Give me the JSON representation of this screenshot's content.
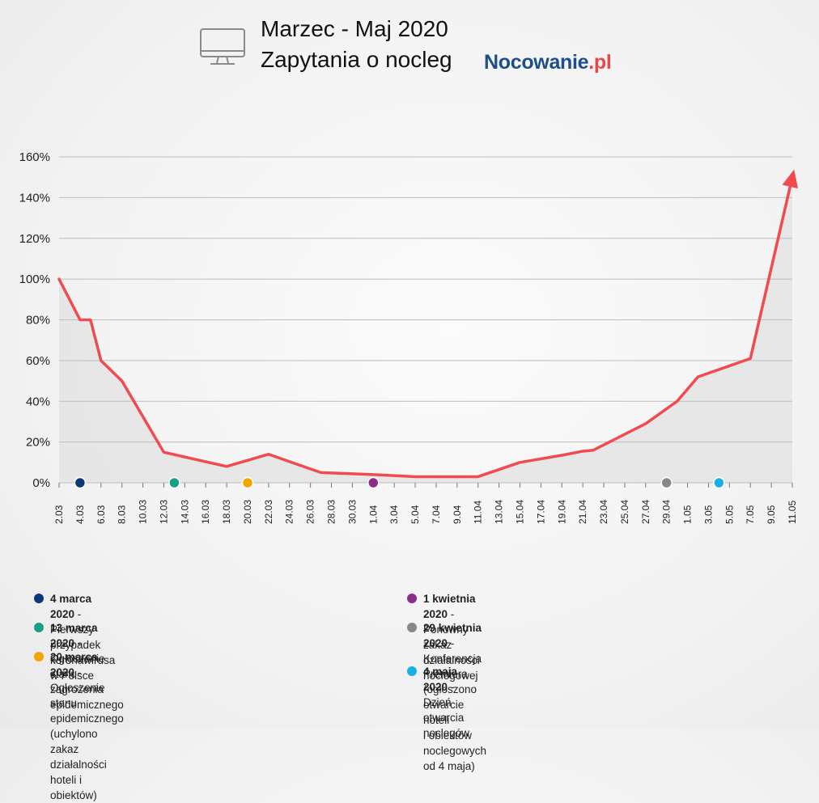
{
  "header": {
    "title_line1": "Marzec - Maj 2020",
    "title_line2": "Zapytania o nocleg",
    "brand_main": "Nocowanie",
    "brand_suffix": ".pl",
    "icon": "monitor-icon"
  },
  "colors": {
    "line": "#ef4b50",
    "area": "#e4e4e4",
    "grid": "#bdbdbd",
    "brand_blue": "#1d4e89",
    "brand_red": "#e8474d"
  },
  "chart_data": {
    "type": "area",
    "title": "Zapytania o nocleg",
    "xlabel": "",
    "ylabel": "",
    "x_ticks": [
      "2.03",
      "4.03",
      "6.03",
      "8.03",
      "10.03",
      "12.03",
      "14.03",
      "16.03",
      "18.03",
      "20.03",
      "22.03",
      "24.03",
      "26.03",
      "28.03",
      "30.03",
      "1.04",
      "3.04",
      "5.04",
      "7.04",
      "9.04",
      "11.04",
      "13.04",
      "15.04",
      "17.04",
      "19.04",
      "21.04",
      "23.04",
      "25.04",
      "27.04",
      "29.04",
      "1.05",
      "3.05",
      "5.05",
      "7.05",
      "9.05",
      "11.05"
    ],
    "y_ticks": [
      "0%",
      "20%",
      "40%",
      "60%",
      "80%",
      "100%",
      "120%",
      "140%",
      "160%"
    ],
    "ylim": [
      0,
      160
    ],
    "grid": true,
    "series": [
      {
        "x": [
          "2.03",
          "4.03",
          "5.03",
          "6.03",
          "8.03",
          "12.03",
          "18.03",
          "22.03",
          "27.03",
          "1.04",
          "5.04",
          "11.04",
          "15.04",
          "19.04",
          "21.04",
          "22.04",
          "27.04",
          "30.04",
          "2.05",
          "7.05",
          "11.05"
        ],
        "values": [
          100,
          80,
          80,
          60,
          50,
          15,
          8,
          14,
          5,
          4,
          3,
          3,
          10,
          13.5,
          15.5,
          16,
          29,
          40,
          52,
          61,
          150
        ]
      }
    ],
    "events": [
      {
        "x": "4.03",
        "color": "#0d3778"
      },
      {
        "x": "13.03",
        "color": "#16a085"
      },
      {
        "x": "20.03",
        "color": "#f0a500"
      },
      {
        "x": "1.04",
        "color": "#8e2c8a"
      },
      {
        "x": "29.04",
        "color": "#888888"
      },
      {
        "x": "4.05",
        "color": "#1bb0e4"
      }
    ]
  },
  "legend": [
    {
      "date": "4 marca 2020",
      "text": " - Pierwszy przypadek koronawirusa w Polsce",
      "text2": "",
      "color": "#0d3778"
    },
    {
      "date": "13 marca 2020",
      "text": " - Ogłoszenie stanu zagrożenia epidemicznego",
      "text2": "",
      "color": "#16a085"
    },
    {
      "date": "20 marca 2020",
      "text": " - Ogłoszenie stanu epidemicznego",
      "text2": "(uchylono zakaz działalności hoteli i obiektów)",
      "color": "#f0a500"
    },
    {
      "date": "1 kwietnia 2020",
      "text": " - Ponowny zakaz działalności noclegowej",
      "text2": "",
      "color": "#8e2c8a"
    },
    {
      "date": "29 kwietnia 2020",
      "text": " - Konferencja Premiera (ogłoszono otwarcie hoteli",
      "text2": "i obiektów noclegowych od 4 maja)",
      "color": "#888888"
    },
    {
      "date": "4 maja 2020",
      "text": " - Dzień otwarcia noclegów",
      "text2": "",
      "color": "#1bb0e4"
    }
  ]
}
